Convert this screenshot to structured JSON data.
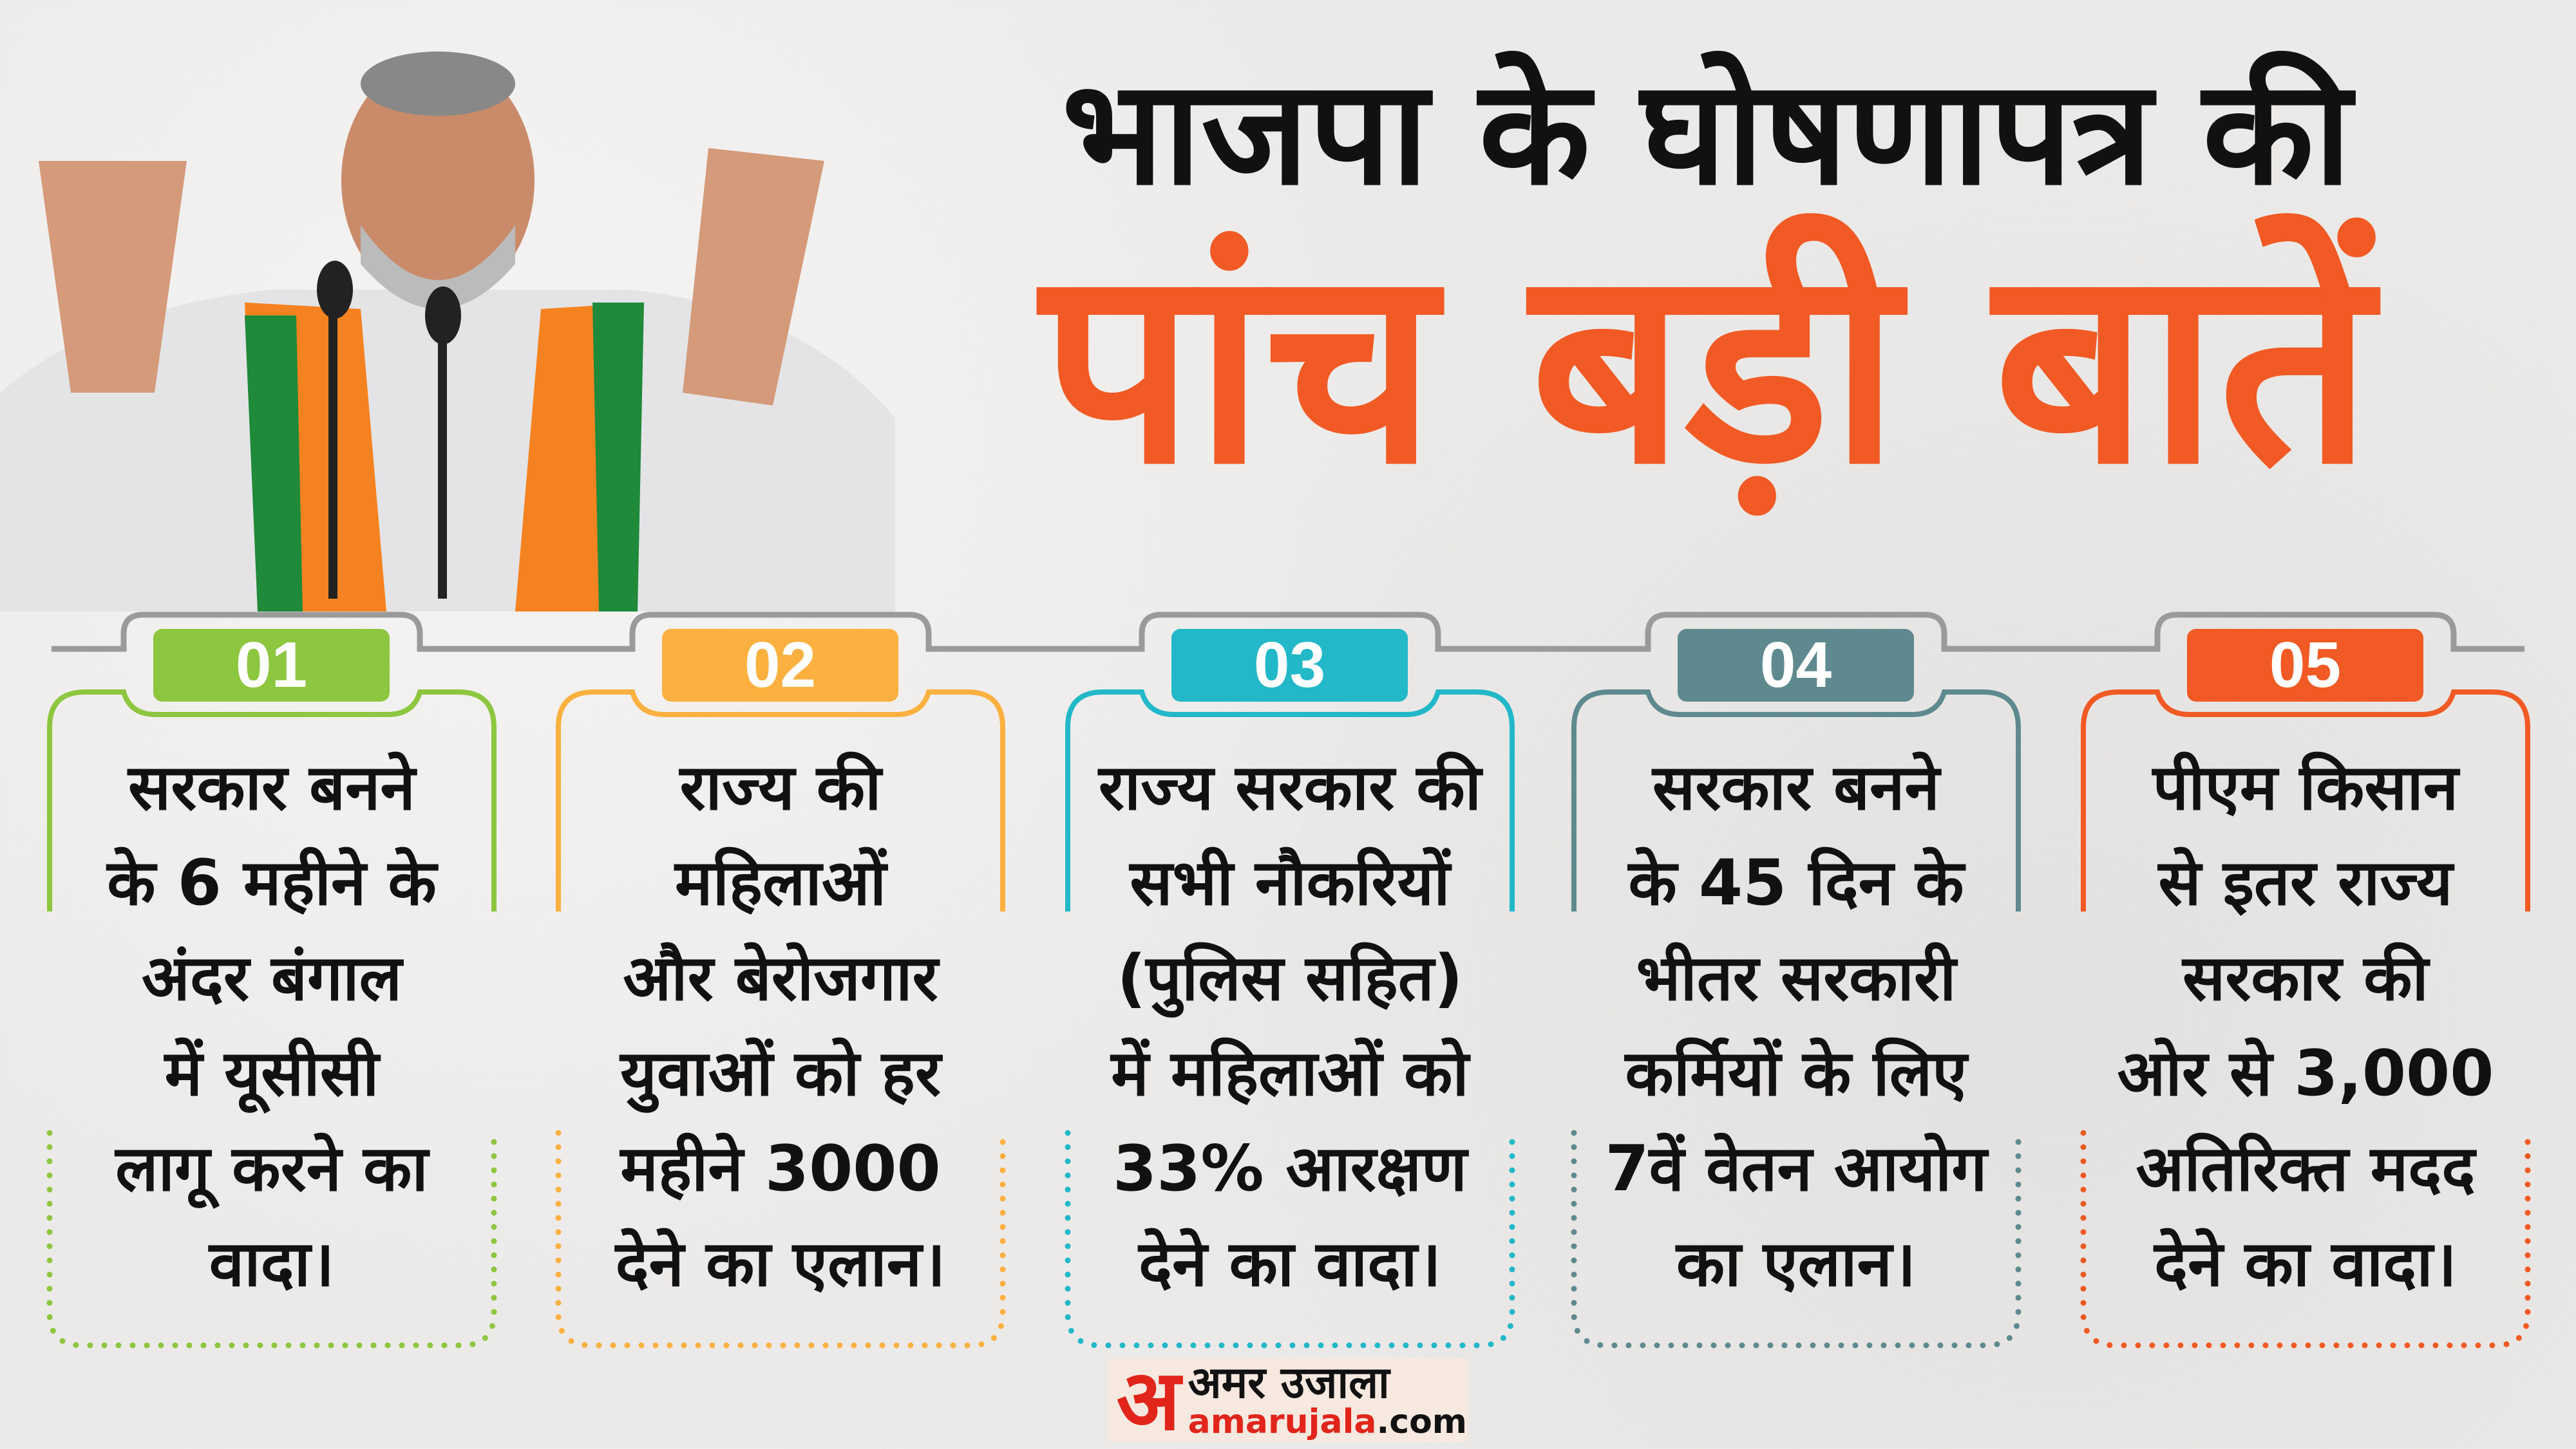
{
  "header": {
    "title_line1": "भाजपा के घोषणापत्र की",
    "title_line2": "पांच बड़ी बातें",
    "title_line2_color": "#f15a24"
  },
  "timeline_color": "#9a9a9a",
  "cards": [
    {
      "number": "01",
      "color": "#8dc63f",
      "lines": [
        "सरकार बनने",
        "के 6 महीने के",
        "अंदर बंगाल",
        "में यूसीसी",
        "लागू करने का",
        "वादा।"
      ]
    },
    {
      "number": "02",
      "color": "#fbb040",
      "lines": [
        "राज्य की",
        "महिलाओं",
        "और बेरोजगार",
        "युवाओं को हर",
        "महीने 3000",
        "देने का एलान।"
      ]
    },
    {
      "number": "03",
      "color": "#22b8c8",
      "lines": [
        "राज्य सरकार की",
        "सभी नौकरियों",
        "(पुलिस सहित)",
        "में महिलाओं को",
        "33% आरक्षण",
        "देने का वादा।"
      ]
    },
    {
      "number": "04",
      "color": "#5e8a8f",
      "lines": [
        "सरकार बनने",
        "के 45 दिन के",
        "भीतर सरकारी",
        "कर्मियों के लिए",
        "7वें वेतन आयोग",
        "का एलान।"
      ]
    },
    {
      "number": "05",
      "color": "#f15a24",
      "lines": [
        "पीएम किसान",
        "से इतर राज्य",
        "सरकार की",
        "ओर से 3,000",
        "अतिरिक्त मदद",
        "देने का वादा।"
      ]
    }
  ],
  "logo": {
    "hindi": "अमर उजाला",
    "mark": "अ",
    "domain_main": "amarujala",
    "domain_tld": ".com"
  }
}
